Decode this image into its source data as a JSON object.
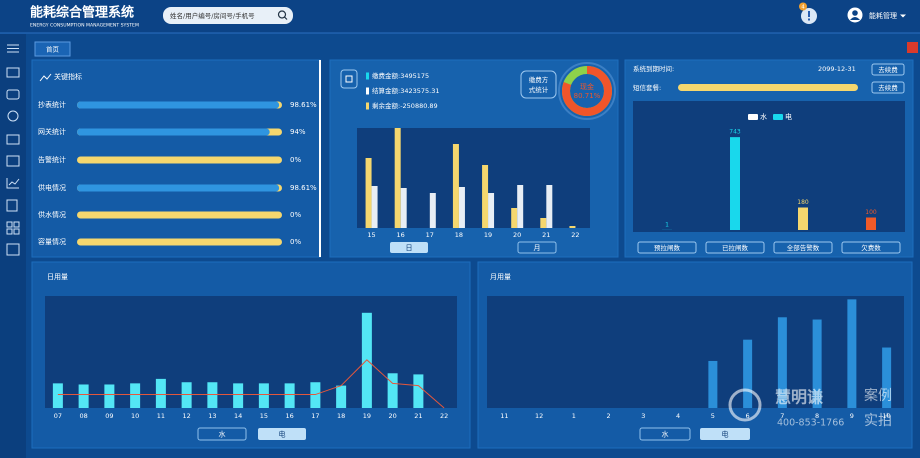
{
  "header": {
    "title": "能耗综合管理系统",
    "subtitle": "ENERGY CONSUMPTION MANAGEMENT SYSTEM",
    "search_placeholder": "姓名/用户编号/房间号/手机号",
    "notification_count": 4,
    "user": "能耗管理"
  },
  "tab": "首页",
  "key_indicators": {
    "title": "关键指标",
    "labels": [
      "抄表统计",
      "网关统计",
      "告警统计",
      "供电情况",
      "供水情况",
      "容量情况"
    ],
    "values": [
      98.61,
      94,
      0,
      98.61,
      0,
      0
    ],
    "value_labels": [
      "98.61%",
      "94%",
      "0%",
      "98.61%",
      "0%",
      "0%"
    ],
    "color": "#2f95e0",
    "track_color": "#f5d76e"
  },
  "payment": {
    "legend": [
      "缴费金额:3495175",
      "结算金额:3423575.31",
      "剩余金额:-250880.89"
    ],
    "legend_colors": [
      "#19d8ec",
      "#ffffff",
      "#f5d76e"
    ],
    "method_button": [
      "缴费方",
      "式统计"
    ],
    "buttons": [
      "日",
      "月"
    ]
  },
  "system": {
    "expiry_label": "系统到期时间:",
    "expiry_date": "2099-12-31",
    "sms_label": "短信套餐:",
    "renew_button": "去续费"
  },
  "daily": {
    "title": "日用量",
    "buttons": [
      "水",
      "电"
    ]
  },
  "monthly": {
    "title": "月用量",
    "buttons": [
      "水",
      "电"
    ]
  },
  "watermark": {
    "name": "慧明谦",
    "tags": [
      "案例",
      "实拍"
    ],
    "phone": "400-853-1766"
  },
  "chart_data": [
    {
      "type": "donut",
      "label": "现金",
      "value": 80.71,
      "value_label": "80.71%",
      "color": "#f0552a",
      "track_color": "#8ed14a"
    },
    {
      "type": "bar",
      "categories": [
        "15",
        "16",
        "17",
        "18",
        "19",
        "20",
        "21",
        "22"
      ],
      "series": [
        {
          "color": "#f5d76e",
          "values": [
            70,
            100,
            0,
            84,
            63,
            20,
            10,
            2
          ]
        },
        {
          "color": "#e8eef5",
          "values": [
            42,
            40,
            35,
            41,
            35,
            43,
            43,
            0
          ]
        }
      ],
      "ylim": [
        0,
        100
      ]
    },
    {
      "type": "bar",
      "categories": [
        "预拉闸数",
        "已拉闸数",
        "全部告警数",
        "欠费数"
      ],
      "values": [
        1,
        743,
        180,
        100
      ],
      "colors": [
        "#19d8ec",
        "#19d8ec",
        "#f5d76e",
        "#f05a28"
      ],
      "data_labels": true,
      "legend": [
        {
          "name": "水",
          "color": "#ffffff"
        },
        {
          "name": "电",
          "color": "#19d8ec"
        }
      ],
      "ylim": [
        0,
        760
      ]
    },
    {
      "type": "bar",
      "categories": [
        "07",
        "08",
        "09",
        "10",
        "11",
        "12",
        "13",
        "14",
        "15",
        "16",
        "17",
        "18",
        "19",
        "20",
        "21",
        "22"
      ],
      "series": [
        {
          "type": "bar",
          "color": "#53e6f5",
          "values": [
            22,
            21,
            21,
            22,
            26,
            23,
            23,
            22,
            22,
            22,
            23,
            20,
            85,
            31,
            30,
            0
          ]
        },
        {
          "type": "line",
          "color": "#e4573c",
          "values": [
            12,
            12,
            12,
            12,
            12,
            12,
            12,
            12,
            12,
            12,
            12,
            20,
            43,
            22,
            20,
            0
          ]
        }
      ],
      "ylim": [
        0,
        100
      ]
    },
    {
      "type": "bar",
      "categories": [
        "11",
        "12",
        "1",
        "2",
        "3",
        "4",
        "5",
        "6",
        "7",
        "8",
        "9",
        "10"
      ],
      "values": [
        0,
        0,
        0,
        0,
        0,
        0,
        42,
        61,
        81,
        79,
        97,
        54
      ],
      "color": "#2b8fd9",
      "ylim": [
        0,
        100
      ]
    }
  ]
}
